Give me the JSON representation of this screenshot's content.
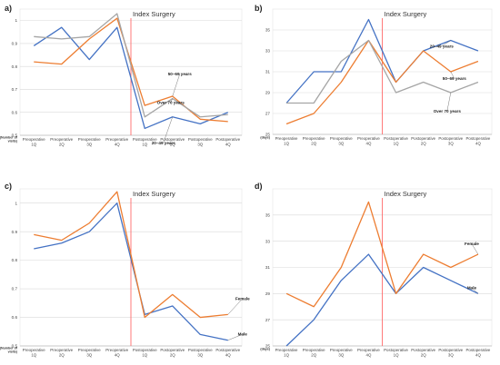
{
  "chart_data": [
    {
      "type": "line",
      "panel": "a)",
      "unit_label": "(Number of visits)",
      "categories": [
        [
          "Preoperative",
          "1Q"
        ],
        [
          "Preoperative",
          "2Q"
        ],
        [
          "Preoperative",
          "3Q"
        ],
        [
          "Preoperative",
          "4Q"
        ],
        [
          "Postoperative",
          "1Q"
        ],
        [
          "Postoperative",
          "2Q"
        ],
        [
          "Postoperative",
          "3Q"
        ],
        [
          "Postoperative",
          "4Q"
        ]
      ],
      "ylim": [
        0.5,
        1.05
      ],
      "yticks": [
        0.5,
        0.6,
        0.7,
        0.8,
        0.9,
        1.0
      ],
      "ytick_labels": [
        "0.5",
        "0.6",
        "0.7",
        "0.8",
        "0.9",
        "1"
      ],
      "event": {
        "label": "Index Surgery",
        "after_index": 3
      },
      "series": [
        {
          "name": "20–49 years",
          "color": "#4472c4",
          "values": [
            0.89,
            0.97,
            0.83,
            0.97,
            0.53,
            0.58,
            0.55,
            0.6
          ]
        },
        {
          "name": "50–69 years",
          "color": "#ed7d31",
          "values": [
            0.82,
            0.81,
            0.92,
            1.01,
            0.63,
            0.67,
            0.57,
            0.56
          ]
        },
        {
          "name": "Over 70 years",
          "color": "#a5a5a5",
          "values": [
            0.93,
            0.92,
            0.93,
            1.03,
            0.58,
            0.66,
            0.58,
            0.59
          ]
        }
      ],
      "annotations": [
        {
          "text": "50–69 years",
          "series": 1,
          "point": 5
        },
        {
          "text": "Over 70 years",
          "series": 2,
          "point": 5
        },
        {
          "text": "20–49 years",
          "series": 0,
          "point": 5
        }
      ]
    },
    {
      "type": "line",
      "panel": "b)",
      "unit_label": "(days)",
      "categories": [
        [
          "Preoperative",
          "1Q"
        ],
        [
          "Preoperative",
          "2Q"
        ],
        [
          "Preoperative",
          "3Q"
        ],
        [
          "Preoperative",
          "4Q"
        ],
        [
          "Postoperative",
          "1Q"
        ],
        [
          "Postoperative",
          "2Q"
        ],
        [
          "Postoperative",
          "3Q"
        ],
        [
          "Postoperative",
          "4Q"
        ]
      ],
      "ylim": [
        25,
        37
      ],
      "yticks": [
        25,
        27,
        29,
        31,
        33,
        35
      ],
      "ytick_labels": [
        "25",
        "27",
        "29",
        "31",
        "33",
        "35"
      ],
      "event": {
        "label": "Index Surgery",
        "after_index": 3
      },
      "series": [
        {
          "name": "20–49 years",
          "color": "#4472c4",
          "values": [
            28,
            31,
            31,
            36,
            30,
            33,
            34,
            33
          ]
        },
        {
          "name": "50–69 years",
          "color": "#ed7d31",
          "values": [
            26,
            27,
            30,
            34,
            30,
            33,
            31,
            32
          ]
        },
        {
          "name": "Over 70 years",
          "color": "#a5a5a5",
          "values": [
            28,
            28,
            32,
            34,
            29,
            30,
            29,
            30
          ]
        }
      ],
      "annotations": [
        {
          "text": "20–49 years",
          "series": 0,
          "point": 6
        },
        {
          "text": "50–69 years",
          "series": 1,
          "point": 6
        },
        {
          "text": "Over 70 years",
          "series": 2,
          "point": 6
        }
      ]
    },
    {
      "type": "line",
      "panel": "c)",
      "unit_label": "(Number of visits)",
      "categories": [
        [
          "Preoperative",
          "1Q"
        ],
        [
          "Preoperative",
          "2Q"
        ],
        [
          "Preoperative",
          "3Q"
        ],
        [
          "Preoperative",
          "4Q"
        ],
        [
          "Postoperative",
          "1Q"
        ],
        [
          "Postoperative",
          "2Q"
        ],
        [
          "Postoperative",
          "3Q"
        ],
        [
          "Postoperative",
          "4Q"
        ]
      ],
      "ylim": [
        0.5,
        1.05
      ],
      "yticks": [
        0.5,
        0.6,
        0.7,
        0.8,
        0.9,
        1.0
      ],
      "ytick_labels": [
        "0.5",
        "0.6",
        "0.7",
        "0.8",
        "0.9",
        "1"
      ],
      "event": {
        "label": "Index Surgery",
        "after_index": 3
      },
      "series": [
        {
          "name": "Male",
          "color": "#4472c4",
          "values": [
            0.84,
            0.86,
            0.9,
            1.0,
            0.61,
            0.64,
            0.54,
            0.52
          ]
        },
        {
          "name": "Female",
          "color": "#ed7d31",
          "values": [
            0.89,
            0.87,
            0.93,
            1.04,
            0.6,
            0.68,
            0.6,
            0.61
          ]
        }
      ],
      "annotations": [
        {
          "text": "Female",
          "series": 1,
          "point": 7
        },
        {
          "text": "Male",
          "series": 0,
          "point": 7
        }
      ]
    },
    {
      "type": "line",
      "panel": "d)",
      "unit_label": "(days)",
      "categories": [
        [
          "Preoperative",
          "1Q"
        ],
        [
          "Preoperative",
          "2Q"
        ],
        [
          "Preoperative",
          "3Q"
        ],
        [
          "Preoperative",
          "4Q"
        ],
        [
          "Postoperative",
          "1Q"
        ],
        [
          "Postoperative",
          "2Q"
        ],
        [
          "Postoperative",
          "3Q"
        ],
        [
          "Postoperative",
          "4Q"
        ]
      ],
      "ylim": [
        25,
        37
      ],
      "yticks": [
        25,
        27,
        29,
        31,
        33,
        35
      ],
      "ytick_labels": [
        "25",
        "27",
        "29",
        "31",
        "33",
        "35"
      ],
      "event": {
        "label": "Index Surgery",
        "after_index": 3
      },
      "series": [
        {
          "name": "Male",
          "color": "#4472c4",
          "values": [
            25,
            27,
            30,
            32,
            29,
            31,
            30,
            29
          ]
        },
        {
          "name": "Female",
          "color": "#ed7d31",
          "values": [
            29,
            28,
            31,
            36,
            29,
            32,
            31,
            32
          ]
        }
      ],
      "annotations": [
        {
          "text": "Female",
          "series": 1,
          "point": 7
        },
        {
          "text": "Male",
          "series": 0,
          "point": 7
        }
      ]
    }
  ]
}
